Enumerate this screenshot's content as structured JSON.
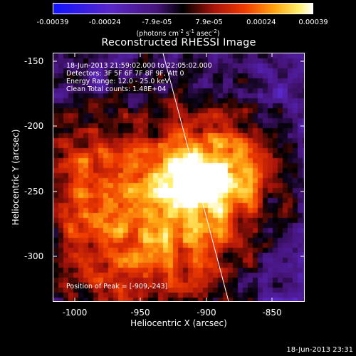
{
  "colorbar": {
    "ticks": [
      "-0.00039",
      "-0.00024",
      "-7.9e-05",
      "7.9e-05",
      "0.00024",
      "0.00039"
    ],
    "units_prefix": "(photons cm",
    "units_exp1": "-2",
    "units_mid1": " s",
    "units_exp2": "-1",
    "units_mid2": " asec",
    "units_exp3": "-2",
    "units_suffix": ")"
  },
  "plot": {
    "title": "Reconstructed RHESSI Image",
    "annotations": [
      "18-Jun-2013 21:59:02.000 to 22:05:02.000",
      "Detectors: 3F 5F 6F 7F 8F 9F, Att 0",
      "Energy Range: 12.0 - 25.0 keV",
      "Clean    Total counts: 1.48E+04"
    ],
    "peak_label": "Position of Peak = [-909,-243]",
    "x_ticks": [
      "-1000",
      "-950",
      "-900",
      "-850"
    ],
    "y_ticks": [
      "-150",
      "-200",
      "-250",
      "-300"
    ],
    "xlabel": "Heliocentric X (arcsec)",
    "ylabel": "Heliocentric Y (arcsec)"
  },
  "footer": {
    "timestamp": "18-Jun-2013 23:31"
  },
  "image_extent": {
    "x_range": [
      -1020,
      -830
    ],
    "y_range": [
      -336,
      -148
    ]
  },
  "peak_position": [
    -909,
    -243
  ],
  "colors": {
    "background": "#000000",
    "limb": "#ffffff"
  }
}
